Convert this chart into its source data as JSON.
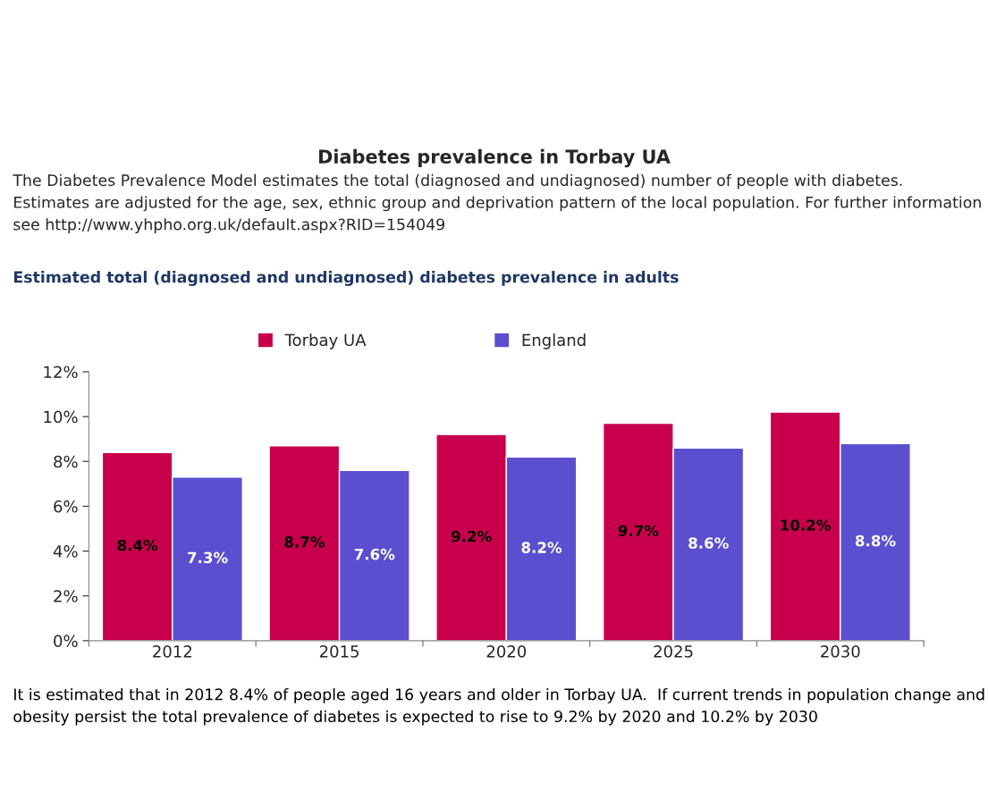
{
  "chart_data": {
    "type": "bar",
    "title": "Diabetes prevalence in Torbay UA",
    "subtitle": "The Diabetes Prevalence Model estimates the total (diagnosed and undiagnosed) number of people with diabetes.  Estimates are adjusted for the age, sex, ethnic group and deprivation pattern of the local population. For further information see http://www.yhpho.org.uk/default.aspx?RID=154049",
    "annotations": [
      "Estimated total (diagnosed and undiagnosed) diabetes prevalence in adults",
      "It is estimated that in 2012 8.4% of people aged 16 years and older in Torbay UA.  If current trends in population change and obesity persist the total prevalence of diabetes is expected to rise to 9.2% by 2020 and 10.2% by 2030"
    ],
    "categories": [
      "2012",
      "2015",
      "2020",
      "2025",
      "2030"
    ],
    "series": [
      {
        "name": "Torbay UA",
        "color": "#c8004b",
        "values": [
          8.4,
          8.7,
          9.2,
          9.7,
          10.2
        ],
        "value_labels": [
          "8.4%",
          "8.7%",
          "9.2%",
          "9.7%",
          "10.2%"
        ]
      },
      {
        "name": "England",
        "color": "#5b4fcf",
        "values": [
          7.3,
          7.6,
          8.2,
          8.6,
          8.8
        ],
        "value_labels": [
          "7.3%",
          "7.6%",
          "8.2%",
          "8.6%",
          "8.8%"
        ]
      }
    ],
    "ylim": [
      0,
      12
    ],
    "yticks": [
      {
        "value": 0,
        "label": "0%"
      },
      {
        "value": 2,
        "label": "2%"
      },
      {
        "value": 4,
        "label": "4%"
      },
      {
        "value": 6,
        "label": "6%"
      },
      {
        "value": 8,
        "label": "8%"
      },
      {
        "value": 10,
        "label": "10%"
      },
      {
        "value": 12,
        "label": "12%"
      }
    ],
    "grid": false,
    "legend": "top"
  }
}
